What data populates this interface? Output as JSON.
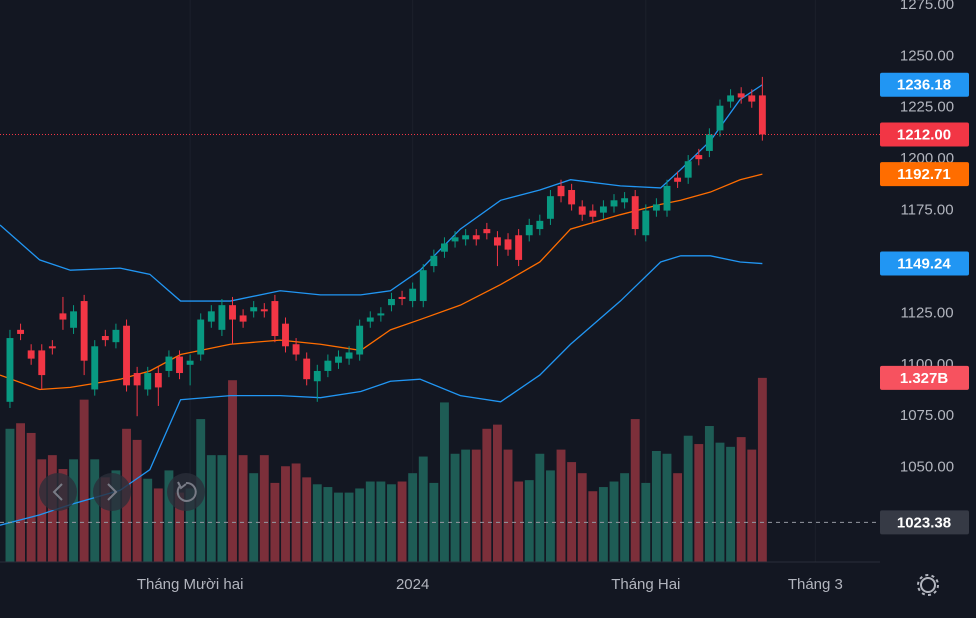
{
  "chart_data": {
    "type": "candlestick",
    "up_color": "#089981",
    "down_color": "#f23645",
    "volume_up_color": "#1e5c55",
    "volume_down_color": "#7c2f3a",
    "open": [
      1082,
      1117,
      1107,
      1107,
      1109,
      1125,
      1118,
      1131,
      1088,
      1114,
      1111,
      1119,
      1096,
      1088,
      1096,
      1097,
      1104,
      1100,
      1105,
      1121,
      1117,
      1129,
      1124,
      1126,
      1127,
      1131,
      1120,
      1110,
      1103,
      1092,
      1097,
      1101,
      1103,
      1105,
      1121,
      1124,
      1129,
      1133,
      1131,
      1131,
      1148,
      1155,
      1160,
      1161,
      1163,
      1166,
      1162,
      1161,
      1163,
      1163,
      1166,
      1171,
      1187,
      1185,
      1177,
      1175,
      1174,
      1177,
      1179,
      1182,
      1163,
      1175,
      1175,
      1191,
      1191,
      1202,
      1204,
      1214,
      1228,
      1232,
      1231,
      1231
    ],
    "high": [
      1117,
      1120,
      1110,
      1110,
      1112,
      1133,
      1129,
      1134,
      1112,
      1117,
      1120,
      1122,
      1099,
      1099,
      1099,
      1107,
      1107,
      1105,
      1125,
      1129,
      1132,
      1133,
      1127,
      1131,
      1130,
      1134,
      1123,
      1113,
      1106,
      1100,
      1105,
      1107,
      1109,
      1122,
      1126,
      1128,
      1135,
      1136,
      1140,
      1149,
      1156,
      1162,
      1165,
      1166,
      1166,
      1169,
      1165,
      1164,
      1166,
      1171,
      1173,
      1185,
      1190,
      1188,
      1180,
      1178,
      1180,
      1183,
      1184,
      1185,
      1178,
      1181,
      1190,
      1194,
      1202,
      1205,
      1215,
      1229,
      1234,
      1235,
      1234,
      1240
    ],
    "low": [
      1079,
      1112,
      1100,
      1088,
      1105,
      1117,
      1115,
      1095,
      1085,
      1109,
      1108,
      1087,
      1075,
      1085,
      1080,
      1094,
      1093,
      1090,
      1102,
      1118,
      1114,
      1110,
      1118,
      1123,
      1123,
      1111,
      1106,
      1102,
      1090,
      1082,
      1094,
      1098,
      1100,
      1102,
      1118,
      1121,
      1126,
      1129,
      1128,
      1128,
      1145,
      1152,
      1157,
      1158,
      1158,
      1161,
      1148,
      1153,
      1148,
      1160,
      1163,
      1168,
      1179,
      1175,
      1170,
      1169,
      1171,
      1174,
      1176,
      1163,
      1160,
      1172,
      1172,
      1186,
      1188,
      1197,
      1201,
      1211,
      1225,
      1227,
      1225,
      1209
    ],
    "close": [
      1113,
      1115,
      1103,
      1095,
      1108,
      1122,
      1126,
      1102,
      1109,
      1112,
      1117,
      1090,
      1090,
      1096,
      1089,
      1104,
      1096,
      1102,
      1122,
      1126,
      1129,
      1122,
      1121,
      1128,
      1126,
      1114,
      1109,
      1105,
      1093,
      1097,
      1102,
      1104,
      1106,
      1119,
      1123,
      1125,
      1132,
      1132,
      1137,
      1146,
      1153,
      1159,
      1162,
      1163,
      1161,
      1164,
      1158,
      1156,
      1151,
      1168,
      1170,
      1182,
      1182,
      1178,
      1173,
      1172,
      1177,
      1180,
      1181,
      1166,
      1175,
      1178,
      1187,
      1189,
      1199,
      1200,
      1212,
      1226,
      1231,
      1230,
      1228,
      1212
    ],
    "volume": [
      0.96,
      1.0,
      0.93,
      0.74,
      0.77,
      0.67,
      0.74,
      1.17,
      0.74,
      0.61,
      0.66,
      0.96,
      0.88,
      0.6,
      0.53,
      0.66,
      0.5,
      0.53,
      1.03,
      0.77,
      0.77,
      1.31,
      0.77,
      0.64,
      0.77,
      0.57,
      0.69,
      0.71,
      0.61,
      0.56,
      0.54,
      0.5,
      0.5,
      0.53,
      0.58,
      0.58,
      0.56,
      0.58,
      0.64,
      0.76,
      0.57,
      1.15,
      0.78,
      0.81,
      0.81,
      0.96,
      0.99,
      0.81,
      0.58,
      0.59,
      0.78,
      0.66,
      0.81,
      0.72,
      0.64,
      0.51,
      0.54,
      0.58,
      0.64,
      1.03,
      0.57,
      0.8,
      0.78,
      0.64,
      0.91,
      0.85,
      0.98,
      0.86,
      0.83,
      0.9,
      0.81,
      1.327
    ],
    "volume_label": "1.327B",
    "volume_ylim": [
      0,
      4.05
    ],
    "last_price_label": "1212.00",
    "bands": {
      "upper_color": "#2196f3",
      "basis_color": "#ff6d00",
      "lower_color": "#2196f3",
      "x": [
        -0.94,
        2.8,
        5.7,
        10.4,
        13.2,
        16.1,
        20.8,
        25.5,
        29.3,
        33.1,
        35.9,
        38.7,
        42.5,
        46.3,
        50,
        52.9,
        57.6,
        61.4,
        63.3,
        66.1,
        68.9,
        71
      ],
      "upper": [
        1168,
        1151,
        1146,
        1147,
        1144,
        1131,
        1131,
        1136,
        1134,
        1134,
        1136,
        1146,
        1166,
        1180,
        1185,
        1190,
        1187,
        1186,
        1195,
        1209,
        1229,
        1236.18
      ],
      "basis": [
        1095,
        1088,
        1089,
        1093,
        1097,
        1105,
        1110,
        1112,
        1110,
        1107,
        1117,
        1122,
        1129,
        1139,
        1150,
        1166,
        1173,
        1178,
        1180,
        1184,
        1190,
        1192.71
      ],
      "lower": [
        1022,
        1027,
        1032,
        1039,
        1049,
        1083,
        1085,
        1085,
        1084,
        1087,
        1092,
        1093,
        1085,
        1082,
        1095,
        1110,
        1131,
        1150,
        1153,
        1153,
        1150,
        1149.24
      ]
    },
    "crosshair": 1023.38,
    "xlim": [
      -0.94,
      82.1
    ],
    "xticks": [
      {
        "value": 17,
        "label": "Tháng Mười hai"
      },
      {
        "value": 38,
        "label": "2024"
      },
      {
        "value": 60,
        "label": "Tháng Hai"
      },
      {
        "value": 76,
        "label": "Tháng 3"
      }
    ],
    "ylim": [
      1004.1,
      1277.4
    ],
    "yticks": [
      {
        "value": 1050,
        "label": "1050.00"
      },
      {
        "value": 1075,
        "label": "1075.00"
      },
      {
        "value": 1100,
        "label": "1100.00"
      },
      {
        "value": 1125,
        "label": "1125.00"
      },
      {
        "value": 1150,
        "label": "1150.00"
      },
      {
        "value": 1175,
        "label": "1175.00"
      },
      {
        "value": 1200,
        "label": "1200.00"
      },
      {
        "value": 1225,
        "label": "1225.00"
      },
      {
        "value": 1250,
        "label": "1250.00"
      },
      {
        "value": 1275,
        "label": "1275.00"
      }
    ],
    "grid": true
  }
}
